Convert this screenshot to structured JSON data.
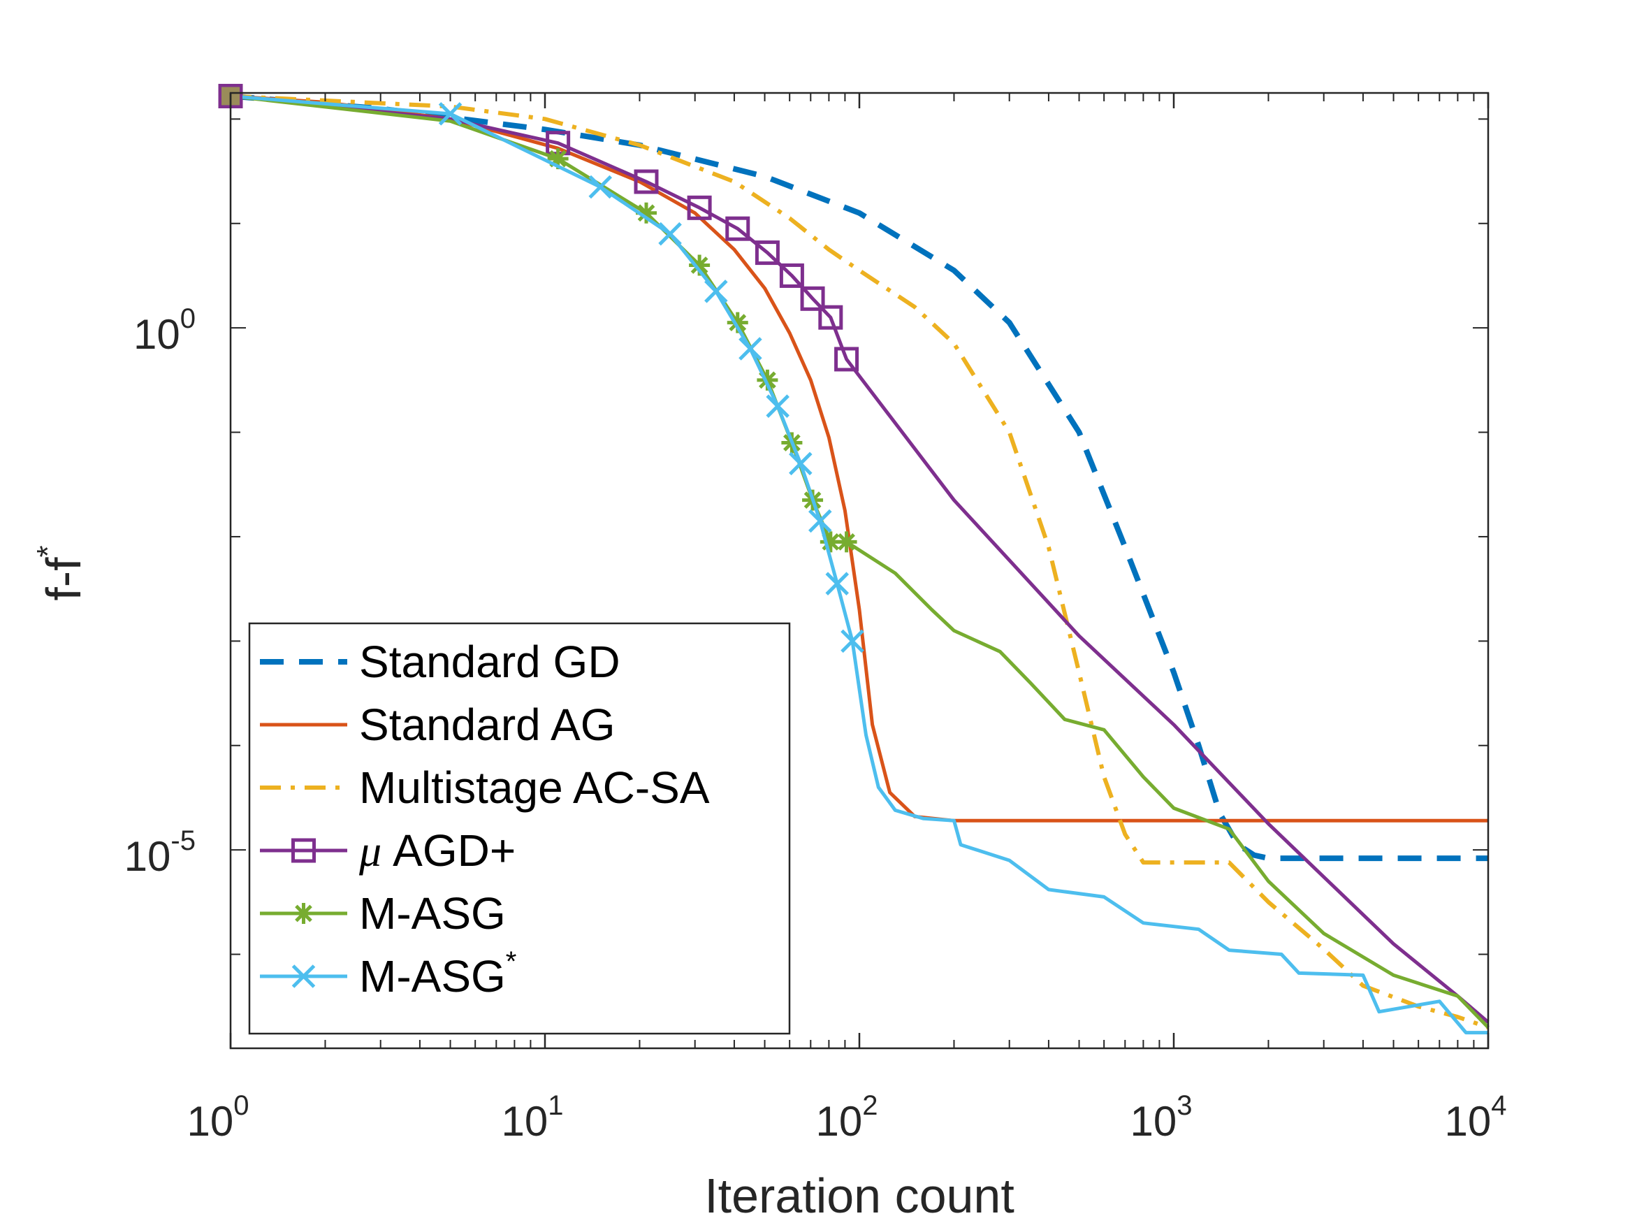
{
  "chart_data": {
    "type": "line",
    "xscale": "log",
    "yscale": "log",
    "xlabel": "Iteration count",
    "ylabel": {
      "base": "f-f",
      "sup": "*"
    },
    "xlim": [
      1,
      10000
    ],
    "ylim_log10": [
      -6.9,
      2.25
    ],
    "xticks": [
      {
        "base": "10",
        "exp": "0",
        "value": 1
      },
      {
        "base": "10",
        "exp": "1",
        "value": 10
      },
      {
        "base": "10",
        "exp": "2",
        "value": 100
      },
      {
        "base": "10",
        "exp": "3",
        "value": 1000
      },
      {
        "base": "10",
        "exp": "4",
        "value": 10000
      }
    ],
    "yticks": [
      {
        "base": "10",
        "exp": "0",
        "value_log10": 0
      },
      {
        "base": "10",
        "exp": "-5",
        "value_log10": -5
      }
    ],
    "series": [
      {
        "name": "Standard GD",
        "sup": "",
        "color": "#0072BD",
        "dash": "dashed",
        "marker": "none",
        "points": [
          [
            1,
            2.22
          ],
          [
            3,
            2.1
          ],
          [
            10,
            1.9
          ],
          [
            20,
            1.75
          ],
          [
            50,
            1.45
          ],
          [
            100,
            1.1
          ],
          [
            200,
            0.55
          ],
          [
            300,
            0.05
          ],
          [
            500,
            -1.0
          ],
          [
            700,
            -2.1
          ],
          [
            1000,
            -3.3
          ],
          [
            1200,
            -4.0
          ],
          [
            1400,
            -4.65
          ],
          [
            1600,
            -4.95
          ],
          [
            1800,
            -5.05
          ],
          [
            2000,
            -5.08
          ],
          [
            5000,
            -5.08
          ],
          [
            10000,
            -5.08
          ]
        ]
      },
      {
        "name": "Standard AG",
        "sup": "",
        "color": "#D95319",
        "dash": "solid",
        "marker": "none",
        "points": [
          [
            1,
            2.22
          ],
          [
            2,
            2.16
          ],
          [
            5,
            2.0
          ],
          [
            11,
            1.72
          ],
          [
            20,
            1.4
          ],
          [
            30,
            1.1
          ],
          [
            40,
            0.75
          ],
          [
            50,
            0.38
          ],
          [
            60,
            -0.05
          ],
          [
            70,
            -0.5
          ],
          [
            80,
            -1.05
          ],
          [
            90,
            -1.75
          ],
          [
            100,
            -2.7
          ],
          [
            110,
            -3.8
          ],
          [
            125,
            -4.45
          ],
          [
            150,
            -4.68
          ],
          [
            200,
            -4.72
          ],
          [
            500,
            -4.72
          ],
          [
            1000,
            -4.72
          ],
          [
            5000,
            -4.72
          ],
          [
            10000,
            -4.72
          ]
        ]
      },
      {
        "name": "Multistage AC-SA",
        "sup": "",
        "color": "#EDB120",
        "dash": "dashdot",
        "marker": "none",
        "points": [
          [
            1,
            2.22
          ],
          [
            5,
            2.12
          ],
          [
            10,
            2.0
          ],
          [
            20,
            1.75
          ],
          [
            40,
            1.4
          ],
          [
            60,
            1.05
          ],
          [
            80,
            0.75
          ],
          [
            100,
            0.55
          ],
          [
            150,
            0.2
          ],
          [
            200,
            -0.15
          ],
          [
            300,
            -1.0
          ],
          [
            400,
            -2.1
          ],
          [
            500,
            -3.3
          ],
          [
            600,
            -4.3
          ],
          [
            700,
            -4.85
          ],
          [
            800,
            -5.12
          ],
          [
            1500,
            -5.12
          ],
          [
            2000,
            -5.5
          ],
          [
            3000,
            -5.95
          ],
          [
            4000,
            -6.3
          ],
          [
            6000,
            -6.5
          ],
          [
            8000,
            -6.6
          ],
          [
            10000,
            -6.7
          ]
        ]
      },
      {
        "name": "AGD+",
        "sup": "",
        "prefix": "μ",
        "color": "#7E2F8E",
        "dash": "solid",
        "marker": "square",
        "markers_at": [
          1,
          11,
          21,
          31,
          41,
          51,
          61,
          71,
          81,
          91
        ],
        "points": [
          [
            1,
            2.22
          ],
          [
            5,
            2.0
          ],
          [
            11,
            1.77
          ],
          [
            21,
            1.4
          ],
          [
            31,
            1.15
          ],
          [
            41,
            0.95
          ],
          [
            51,
            0.72
          ],
          [
            61,
            0.5
          ],
          [
            71,
            0.28
          ],
          [
            81,
            0.1
          ],
          [
            91,
            -0.3
          ],
          [
            200,
            -1.65
          ],
          [
            500,
            -2.95
          ],
          [
            1000,
            -3.8
          ],
          [
            2000,
            -4.75
          ],
          [
            5000,
            -5.9
          ],
          [
            8000,
            -6.4
          ],
          [
            10000,
            -6.65
          ]
        ]
      },
      {
        "name": "M-ASG",
        "sup": "",
        "color": "#77AC30",
        "dash": "solid",
        "marker": "asterisk",
        "markers_at": [
          1,
          11,
          21,
          31,
          41,
          51,
          61,
          71,
          81,
          91
        ],
        "points": [
          [
            1,
            2.22
          ],
          [
            5,
            1.98
          ],
          [
            11,
            1.62
          ],
          [
            21,
            1.1
          ],
          [
            31,
            0.6
          ],
          [
            41,
            0.05
          ],
          [
            51,
            -0.5
          ],
          [
            61,
            -1.1
          ],
          [
            71,
            -1.65
          ],
          [
            81,
            -2.05
          ],
          [
            91,
            -2.05
          ],
          [
            130,
            -2.35
          ],
          [
            170,
            -2.7
          ],
          [
            200,
            -2.9
          ],
          [
            280,
            -3.1
          ],
          [
            350,
            -3.4
          ],
          [
            450,
            -3.75
          ],
          [
            600,
            -3.85
          ],
          [
            800,
            -4.3
          ],
          [
            1000,
            -4.6
          ],
          [
            1500,
            -4.8
          ],
          [
            2000,
            -5.3
          ],
          [
            3000,
            -5.8
          ],
          [
            5000,
            -6.2
          ],
          [
            8000,
            -6.4
          ],
          [
            10000,
            -6.7
          ]
        ]
      },
      {
        "name": "M-ASG",
        "sup": "*",
        "color": "#4DBEEE",
        "dash": "solid",
        "marker": "x",
        "markers_at": [
          1,
          5,
          15,
          25,
          35,
          45,
          55,
          65,
          75,
          85,
          95
        ],
        "points": [
          [
            1,
            2.22
          ],
          [
            5,
            2.05
          ],
          [
            15,
            1.35
          ],
          [
            25,
            0.9
          ],
          [
            35,
            0.35
          ],
          [
            45,
            -0.2
          ],
          [
            55,
            -0.75
          ],
          [
            65,
            -1.3
          ],
          [
            75,
            -1.85
          ],
          [
            85,
            -2.45
          ],
          [
            95,
            -3.0
          ],
          [
            105,
            -3.9
          ],
          [
            115,
            -4.4
          ],
          [
            130,
            -4.62
          ],
          [
            160,
            -4.7
          ],
          [
            200,
            -4.72
          ],
          [
            210,
            -4.95
          ],
          [
            300,
            -5.1
          ],
          [
            400,
            -5.38
          ],
          [
            600,
            -5.45
          ],
          [
            800,
            -5.7
          ],
          [
            1200,
            -5.76
          ],
          [
            1500,
            -5.96
          ],
          [
            2200,
            -6.0
          ],
          [
            2500,
            -6.18
          ],
          [
            4000,
            -6.2
          ],
          [
            4500,
            -6.55
          ],
          [
            7000,
            -6.45
          ],
          [
            8500,
            -6.75
          ],
          [
            10000,
            -6.75
          ]
        ]
      }
    ]
  }
}
